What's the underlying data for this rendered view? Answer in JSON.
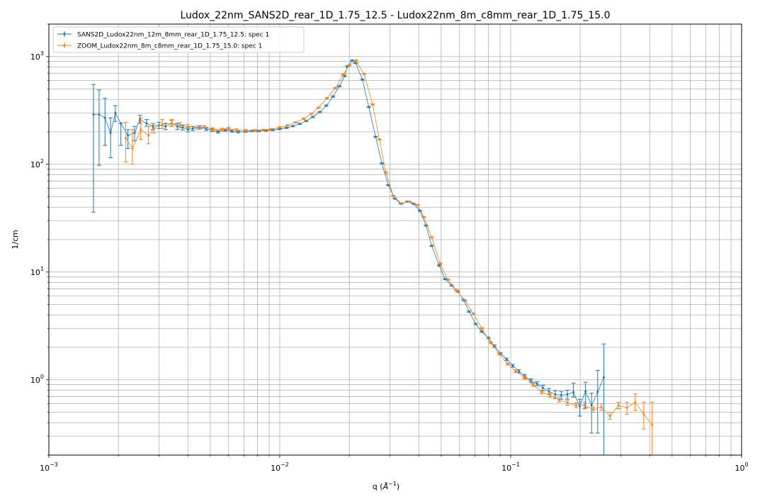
{
  "chart_data": {
    "type": "line",
    "title": "Ludox_22nm_SANS2D_rear_1D_1.75_12.5 - Ludox22nm_8m_c8mm_rear_1D_1.75_15.0",
    "xlabel_main": "q (",
    "xlabel_unit": "Å",
    "xlabel_sup": "−1",
    "xlabel_end": ")",
    "ylabel": "1/cm",
    "xscale": "log",
    "yscale": "log",
    "xlim": [
      0.001,
      1.0
    ],
    "ylim": [
      0.2,
      2000
    ],
    "x_tick_labels": [
      {
        "base": "10",
        "exp": "−3"
      },
      {
        "base": "10",
        "exp": "−2"
      },
      {
        "base": "10",
        "exp": "−1"
      },
      {
        "base": "10",
        "exp": "0"
      }
    ],
    "y_tick_labels": [
      {
        "base": "10",
        "exp": "0"
      },
      {
        "base": "10",
        "exp": "1"
      },
      {
        "base": "10",
        "exp": "2"
      },
      {
        "base": "10",
        "exp": "3"
      }
    ],
    "grid": true,
    "legend_position": "top-left",
    "series": [
      {
        "name": "SANS2D_Ludox22nm_12m_8mm_rear_1D_1.75_12.5: spec 1",
        "color": "#1f77b4",
        "points": [
          [
            0.00156,
            290,
            36,
            550
          ],
          [
            0.00165,
            290,
            98,
            490
          ],
          [
            0.00175,
            270,
            150,
            410
          ],
          [
            0.00185,
            195,
            115,
            270
          ],
          [
            0.00194,
            300,
            250,
            350
          ],
          [
            0.00205,
            240,
            150,
            240
          ],
          [
            0.0022,
            185,
            140,
            210
          ],
          [
            0.00235,
            195,
            165,
            225
          ],
          [
            0.00248,
            260,
            240,
            285
          ],
          [
            0.00265,
            240,
            225,
            260
          ],
          [
            0.00282,
            225,
            210,
            240
          ],
          [
            0.003,
            230,
            215,
            245
          ],
          [
            0.0032,
            225,
            210,
            240
          ],
          [
            0.0034,
            240,
            225,
            255
          ],
          [
            0.0036,
            225,
            210,
            240
          ],
          [
            0.0038,
            220,
            208,
            232
          ],
          [
            0.004,
            210,
            200,
            220
          ],
          [
            0.0042,
            215,
            205,
            225
          ],
          [
            0.0045,
            220,
            212,
            228
          ],
          [
            0.0048,
            213,
            206,
            220
          ],
          [
            0.0051,
            208,
            202,
            214
          ],
          [
            0.0054,
            200,
            195,
            205
          ],
          [
            0.0058,
            208,
            203,
            213
          ],
          [
            0.0062,
            203,
            199,
            207
          ],
          [
            0.0066,
            200,
            196,
            204
          ],
          [
            0.0071,
            202,
            198,
            206
          ],
          [
            0.0076,
            204,
            201,
            207
          ],
          [
            0.0081,
            204,
            201,
            207
          ],
          [
            0.0087,
            206,
            203,
            209
          ],
          [
            0.0093,
            208,
            205,
            211
          ],
          [
            0.01,
            213,
            210,
            216
          ],
          [
            0.0107,
            218,
            215,
            221
          ],
          [
            0.0114,
            226,
            223,
            229
          ],
          [
            0.0122,
            237,
            234,
            240
          ],
          [
            0.013,
            252,
            249,
            255
          ],
          [
            0.0139,
            275,
            271,
            279
          ],
          [
            0.0149,
            305,
            301,
            309
          ],
          [
            0.0159,
            350,
            345,
            355
          ],
          [
            0.017,
            425,
            419,
            431
          ],
          [
            0.0181,
            530,
            523,
            537
          ],
          [
            0.0191,
            660,
            651,
            669
          ],
          [
            0.0196,
            810,
            800,
            820
          ],
          [
            0.0206,
            920,
            910,
            930
          ],
          [
            0.0213,
            870,
            860,
            880
          ],
          [
            0.0228,
            610,
            603,
            617
          ],
          [
            0.0243,
            340,
            336,
            344
          ],
          [
            0.026,
            180,
            178,
            182
          ],
          [
            0.0277,
            102,
            101,
            103
          ],
          [
            0.0295,
            64,
            63.4,
            64.6
          ],
          [
            0.0315,
            48,
            47.5,
            48.5
          ],
          [
            0.0335,
            43,
            42.6,
            43.4
          ],
          [
            0.0357,
            45,
            44.6,
            45.4
          ],
          [
            0.038,
            43,
            42.6,
            43.4
          ],
          [
            0.0405,
            37,
            36.6,
            37.4
          ],
          [
            0.043,
            27,
            26.7,
            27.3
          ],
          [
            0.0455,
            17.5,
            17.3,
            17.7
          ],
          [
            0.049,
            11.5,
            11.35,
            11.65
          ],
          [
            0.052,
            8.6,
            8.5,
            8.7
          ],
          [
            0.0555,
            7.5,
            7.4,
            7.6
          ],
          [
            0.059,
            6.6,
            6.5,
            6.7
          ],
          [
            0.0625,
            5.5,
            5.42,
            5.58
          ],
          [
            0.066,
            4.3,
            4.24,
            4.36
          ],
          [
            0.0705,
            3.3,
            3.25,
            3.35
          ],
          [
            0.075,
            2.8,
            2.76,
            2.84
          ],
          [
            0.08,
            2.45,
            2.41,
            2.49
          ],
          [
            0.085,
            2.05,
            2.0,
            2.1
          ],
          [
            0.0905,
            1.75,
            1.71,
            1.79
          ],
          [
            0.096,
            1.55,
            1.51,
            1.59
          ],
          [
            0.102,
            1.35,
            1.31,
            1.39
          ],
          [
            0.1085,
            1.2,
            1.16,
            1.24
          ],
          [
            0.115,
            1.08,
            1.04,
            1.12
          ],
          [
            0.1225,
            0.98,
            0.94,
            1.02
          ],
          [
            0.13,
            0.92,
            0.88,
            0.96
          ],
          [
            0.138,
            0.84,
            0.79,
            0.89
          ],
          [
            0.1465,
            0.78,
            0.73,
            0.83
          ],
          [
            0.156,
            0.73,
            0.67,
            0.79
          ],
          [
            0.1655,
            0.72,
            0.66,
            0.78
          ],
          [
            0.176,
            0.73,
            0.66,
            0.8
          ],
          [
            0.187,
            0.77,
            0.69,
            0.93
          ],
          [
            0.199,
            0.57,
            0.46,
            0.66
          ],
          [
            0.211,
            0.78,
            0.55,
            0.95
          ],
          [
            0.224,
            0.58,
            0.32,
            0.75
          ],
          [
            0.238,
            0.77,
            0.32,
            1.22
          ],
          [
            0.253,
            1.05,
            0.15,
            2.15
          ]
        ]
      },
      {
        "name": "ZOOM_Ludox22nm_8m_c8mm_rear_1D_1.75_15.0: spec 1",
        "color": "#ff7f0e",
        "points": [
          [
            0.00215,
            175,
            105,
            245
          ],
          [
            0.0023,
            140,
            100,
            210
          ],
          [
            0.0025,
            210,
            170,
            270
          ],
          [
            0.0027,
            185,
            155,
            225
          ],
          [
            0.00285,
            215,
            195,
            240
          ],
          [
            0.0031,
            235,
            215,
            260
          ],
          [
            0.0034,
            240,
            225,
            260
          ],
          [
            0.0037,
            230,
            218,
            244
          ],
          [
            0.004,
            225,
            215,
            235
          ],
          [
            0.0044,
            220,
            212,
            228
          ],
          [
            0.0047,
            222,
            215,
            229
          ],
          [
            0.0051,
            212,
            206,
            218
          ],
          [
            0.0056,
            210,
            204,
            216
          ],
          [
            0.006,
            215,
            210,
            220
          ],
          [
            0.0065,
            208,
            203,
            213
          ],
          [
            0.0071,
            206,
            202,
            210
          ],
          [
            0.0078,
            206,
            202,
            210
          ],
          [
            0.0085,
            208,
            205,
            211
          ],
          [
            0.0092,
            212,
            209,
            215
          ],
          [
            0.01,
            220,
            217,
            223
          ],
          [
            0.0108,
            230,
            227,
            233
          ],
          [
            0.0117,
            245,
            242,
            248
          ],
          [
            0.0127,
            265,
            261,
            269
          ],
          [
            0.0137,
            295,
            291,
            299
          ],
          [
            0.0147,
            335,
            330,
            340
          ],
          [
            0.016,
            410,
            404,
            416
          ],
          [
            0.0174,
            510,
            503,
            517
          ],
          [
            0.0188,
            680,
            671,
            689
          ],
          [
            0.02,
            830,
            820,
            840
          ],
          [
            0.0213,
            920,
            910,
            930
          ],
          [
            0.0232,
            690,
            682,
            698
          ],
          [
            0.0252,
            360,
            356,
            364
          ],
          [
            0.027,
            170,
            168,
            172
          ],
          [
            0.0288,
            84,
            83.2,
            84.8
          ],
          [
            0.031,
            51,
            50.5,
            51.5
          ],
          [
            0.0335,
            43.5,
            43.1,
            43.9
          ],
          [
            0.0365,
            45,
            44.6,
            45.4
          ],
          [
            0.0395,
            42,
            41.6,
            42.4
          ],
          [
            0.042,
            32.5,
            32.2,
            32.8
          ],
          [
            0.0455,
            21,
            20.8,
            21.2
          ],
          [
            0.0495,
            12,
            11.85,
            12.15
          ],
          [
            0.0535,
            8.5,
            8.4,
            8.6
          ],
          [
            0.058,
            6.8,
            6.7,
            6.9
          ],
          [
            0.0635,
            5.4,
            5.32,
            5.48
          ],
          [
            0.069,
            4.1,
            4.04,
            4.16
          ],
          [
            0.075,
            3.0,
            2.96,
            3.04
          ],
          [
            0.082,
            2.2,
            2.16,
            2.24
          ],
          [
            0.089,
            1.75,
            1.71,
            1.79
          ],
          [
            0.097,
            1.4,
            1.37,
            1.43
          ],
          [
            0.105,
            1.2,
            1.17,
            1.23
          ],
          [
            0.115,
            1.05,
            1.02,
            1.08
          ],
          [
            0.125,
            0.9,
            0.87,
            0.93
          ],
          [
            0.136,
            0.77,
            0.74,
            0.8
          ],
          [
            0.148,
            0.72,
            0.69,
            0.75
          ],
          [
            0.162,
            0.65,
            0.62,
            0.68
          ],
          [
            0.176,
            0.61,
            0.58,
            0.64
          ],
          [
            0.192,
            0.58,
            0.55,
            0.61
          ],
          [
            0.209,
            0.58,
            0.54,
            0.62
          ],
          [
            0.228,
            0.53,
            0.5,
            0.56
          ],
          [
            0.247,
            0.56,
            0.52,
            0.6
          ],
          [
            0.269,
            0.46,
            0.43,
            0.5
          ],
          [
            0.293,
            0.58,
            0.54,
            0.62
          ],
          [
            0.319,
            0.55,
            0.48,
            0.62
          ],
          [
            0.346,
            0.62,
            0.52,
            0.74
          ],
          [
            0.377,
            0.48,
            0.35,
            0.62
          ],
          [
            0.41,
            0.38,
            0.15,
            0.62
          ]
        ]
      }
    ]
  }
}
